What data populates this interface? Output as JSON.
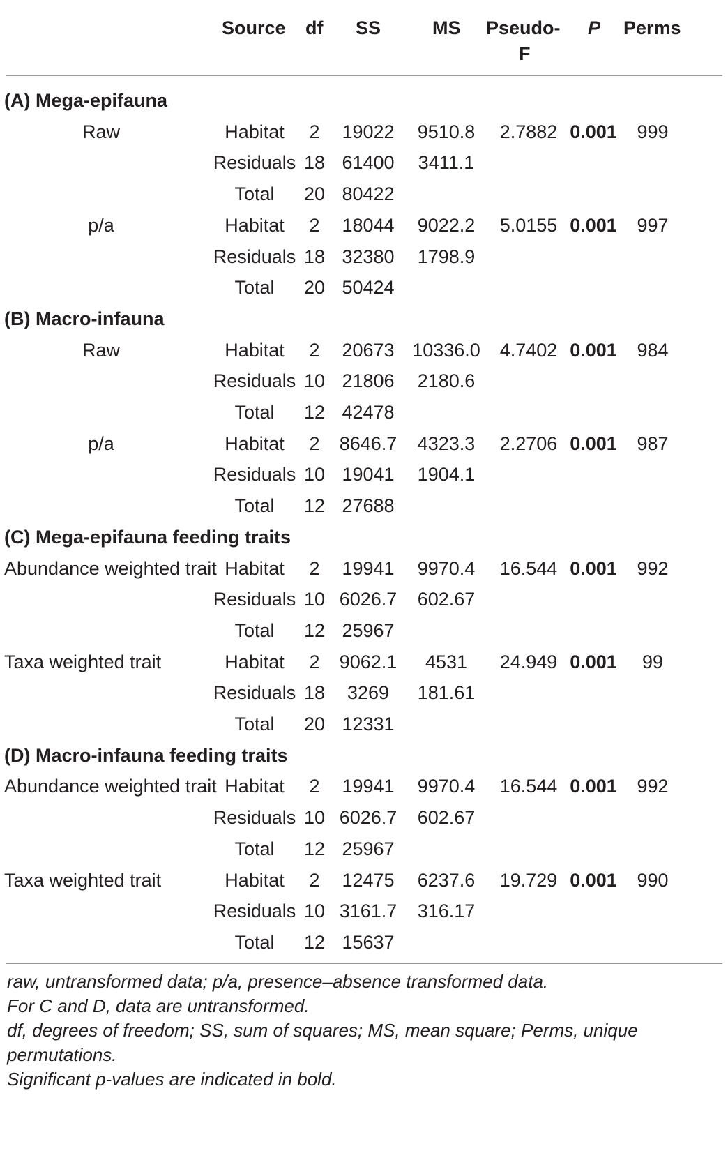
{
  "columns": [
    "Source",
    "df",
    "SS",
    "MS",
    "Pseudo-",
    "F",
    "P",
    "Perms"
  ],
  "sections": [
    {
      "label": "(A) Mega-epifauna",
      "groups": [
        {
          "name": "Raw",
          "rows": [
            {
              "source": "Habitat",
              "df": "2",
              "ss": "19022",
              "ms": "9510.8",
              "f": "2.7882",
              "p": "0.001",
              "perms": "999"
            },
            {
              "source": "Residuals",
              "df": "18",
              "ss": "61400",
              "ms": "3411.1",
              "f": "",
              "p": "",
              "perms": ""
            },
            {
              "source": "Total",
              "df": "20",
              "ss": "80422",
              "ms": "",
              "f": "",
              "p": "",
              "perms": ""
            }
          ]
        },
        {
          "name": "p/a",
          "rows": [
            {
              "source": "Habitat",
              "df": "2",
              "ss": "18044",
              "ms": "9022.2",
              "f": "5.0155",
              "p": "0.001",
              "perms": "997"
            },
            {
              "source": "Residuals",
              "df": "18",
              "ss": "32380",
              "ms": "1798.9",
              "f": "",
              "p": "",
              "perms": ""
            },
            {
              "source": "Total",
              "df": "20",
              "ss": "50424",
              "ms": "",
              "f": "",
              "p": "",
              "perms": ""
            }
          ]
        }
      ]
    },
    {
      "label": "(B) Macro-infauna",
      "groups": [
        {
          "name": "Raw",
          "rows": [
            {
              "source": "Habitat",
              "df": "2",
              "ss": "20673",
              "ms": "10336.0",
              "f": "4.7402",
              "p": "0.001",
              "perms": "984"
            },
            {
              "source": "Residuals",
              "df": "10",
              "ss": "21806",
              "ms": "2180.6",
              "f": "",
              "p": "",
              "perms": ""
            },
            {
              "source": "Total",
              "df": "12",
              "ss": "42478",
              "ms": "",
              "f": "",
              "p": "",
              "perms": ""
            }
          ]
        },
        {
          "name": "p/a",
          "rows": [
            {
              "source": "Habitat",
              "df": "2",
              "ss": "8646.7",
              "ms": "4323.3",
              "f": "2.2706",
              "p": "0.001",
              "perms": "987"
            },
            {
              "source": "Residuals",
              "df": "10",
              "ss": "19041",
              "ms": "1904.1",
              "f": "",
              "p": "",
              "perms": ""
            },
            {
              "source": "Total",
              "df": "12",
              "ss": "27688",
              "ms": "",
              "f": "",
              "p": "",
              "perms": ""
            }
          ]
        }
      ]
    },
    {
      "label": "(C) Mega-epifauna feeding traits",
      "groups": [
        {
          "name": "Abundance weighted trait",
          "rows": [
            {
              "source": "Habitat",
              "df": "2",
              "ss": "19941",
              "ms": "9970.4",
              "f": "16.544",
              "p": "0.001",
              "perms": "992"
            },
            {
              "source": "Residuals",
              "df": "10",
              "ss": "6026.7",
              "ms": "602.67",
              "f": "",
              "p": "",
              "perms": ""
            },
            {
              "source": "Total",
              "df": "12",
              "ss": "25967",
              "ms": "",
              "f": "",
              "p": "",
              "perms": ""
            }
          ]
        },
        {
          "name": "Taxa weighted trait",
          "rows": [
            {
              "source": "Habitat",
              "df": "2",
              "ss": "9062.1",
              "ms": "4531",
              "f": "24.949",
              "p": "0.001",
              "perms": "99"
            },
            {
              "source": "Residuals",
              "df": "18",
              "ss": "3269",
              "ms": "181.61",
              "f": "",
              "p": "",
              "perms": ""
            },
            {
              "source": "Total",
              "df": "20",
              "ss": "12331",
              "ms": "",
              "f": "",
              "p": "",
              "perms": ""
            }
          ]
        }
      ]
    },
    {
      "label": "(D) Macro-infauna feeding traits",
      "groups": [
        {
          "name": "Abundance weighted trait",
          "rows": [
            {
              "source": "Habitat",
              "df": "2",
              "ss": "19941",
              "ms": "9970.4",
              "f": "16.544",
              "p": "0.001",
              "perms": "992"
            },
            {
              "source": "Residuals",
              "df": "10",
              "ss": "6026.7",
              "ms": "602.67",
              "f": "",
              "p": "",
              "perms": ""
            },
            {
              "source": "Total",
              "df": "12",
              "ss": "25967",
              "ms": "",
              "f": "",
              "p": "",
              "perms": ""
            }
          ]
        },
        {
          "name": "Taxa weighted trait",
          "rows": [
            {
              "source": "Habitat",
              "df": "2",
              "ss": "12475",
              "ms": "6237.6",
              "f": "19.729",
              "p": "0.001",
              "perms": "990"
            },
            {
              "source": "Residuals",
              "df": "10",
              "ss": "3161.7",
              "ms": "316.17",
              "f": "",
              "p": "",
              "perms": ""
            },
            {
              "source": "Total",
              "df": "12",
              "ss": "15637",
              "ms": "",
              "f": "",
              "p": "",
              "perms": ""
            }
          ]
        }
      ]
    }
  ],
  "footnotes": [
    "raw, untransformed data; p/a, presence–absence transformed data.",
    "For C and D, data are untransformed.",
    "df, degrees of freedom; SS, sum of squares; MS, mean square; Perms, unique",
    "permutations.",
    "Significant p-values are indicated in bold."
  ]
}
